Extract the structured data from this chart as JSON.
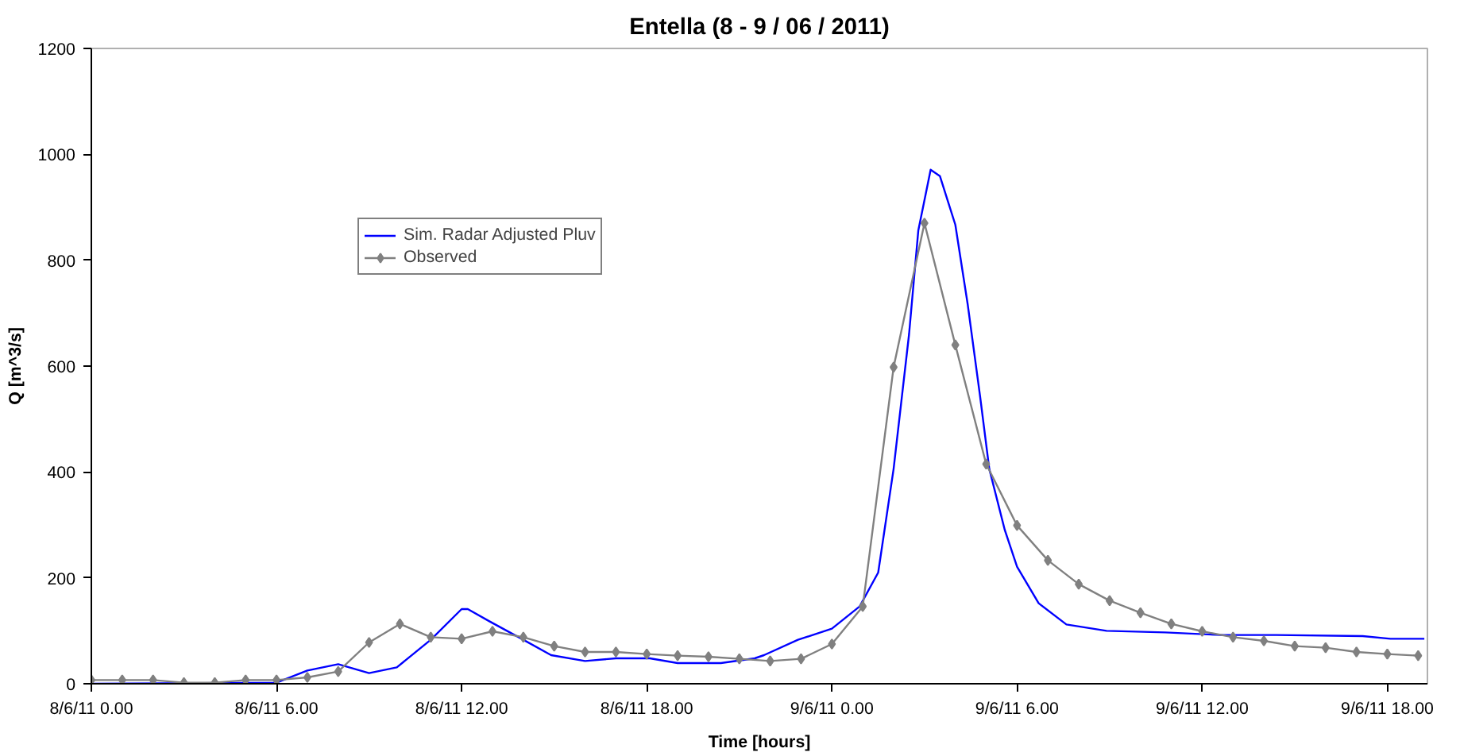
{
  "chart_data": {
    "type": "line",
    "title": "Entella (8 - 9 / 06 / 2011)",
    "xlabel": "Time [hours]",
    "ylabel": "Q [m^3/s]",
    "xlim": [
      "2011-06-08T00:00",
      "2011-06-09T19:18"
    ],
    "xticks": [
      {
        "value": "2011-06-08T00:00",
        "label": "8/6/11 0.00"
      },
      {
        "value": "2011-06-08T06:00",
        "label": "8/6/11 6.00"
      },
      {
        "value": "2011-06-08T12:00",
        "label": "8/6/11 12.00"
      },
      {
        "value": "2011-06-08T18:00",
        "label": "8/6/11 18.00"
      },
      {
        "value": "2011-06-09T00:00",
        "label": "9/6/11 0.00"
      },
      {
        "value": "2011-06-09T06:00",
        "label": "9/6/11 6.00"
      },
      {
        "value": "2011-06-09T12:00",
        "label": "9/6/11 12.00"
      },
      {
        "value": "2011-06-09T18:00",
        "label": "9/6/11 18.00"
      }
    ],
    "ylim": [
      0,
      1200
    ],
    "yticks": [
      0,
      200,
      400,
      600,
      800,
      1000,
      1200
    ],
    "grid": false,
    "legend": "top left",
    "series": [
      {
        "name": "Sim. Radar Adjusted Pluv",
        "color": "#0000ff",
        "marker": "none",
        "x": [
          "2011-06-08T00:00",
          "2011-06-08T06:00",
          "2011-06-08T07:00",
          "2011-06-08T08:00",
          "2011-06-08T09:00",
          "2011-06-08T09:54",
          "2011-06-08T11:00",
          "2011-06-08T12:00",
          "2011-06-08T12:12",
          "2011-06-08T12:54",
          "2011-06-08T14:00",
          "2011-06-08T14:54",
          "2011-06-08T16:00",
          "2011-06-08T17:00",
          "2011-06-08T18:06",
          "2011-06-08T19:00",
          "2011-06-08T20:24",
          "2011-06-08T21:30",
          "2011-06-08T21:48",
          "2011-06-08T22:54",
          "2011-06-09T00:00",
          "2011-06-09T00:54",
          "2011-06-09T01:30",
          "2011-06-09T02:00",
          "2011-06-09T02:30",
          "2011-06-09T02:48",
          "2011-06-09T03:12",
          "2011-06-09T03:30",
          "2011-06-09T04:00",
          "2011-06-09T04:24",
          "2011-06-09T04:48",
          "2011-06-09T05:06",
          "2011-06-09T05:36",
          "2011-06-09T06:00",
          "2011-06-09T06:42",
          "2011-06-09T07:36",
          "2011-06-09T08:54",
          "2011-06-09T10:48",
          "2011-06-09T12:36",
          "2011-06-09T14:24",
          "2011-06-09T17:12",
          "2011-06-09T18:06",
          "2011-06-09T19:12"
        ],
        "values": [
          0,
          2,
          25,
          37,
          20,
          31,
          83,
          141,
          141,
          118,
          83,
          54,
          43,
          48,
          48,
          39,
          39,
          48,
          54,
          83,
          104,
          146,
          210,
          406,
          660,
          856,
          971,
          959,
          867,
          717,
          544,
          406,
          291,
          221,
          152,
          112,
          100,
          97,
          92,
          92,
          90,
          85,
          85
        ]
      },
      {
        "name": "Observed",
        "color": "#808080",
        "marker": "diamond",
        "x": [
          "2011-06-08T00:00",
          "2011-06-08T01:00",
          "2011-06-08T02:00",
          "2011-06-08T03:00",
          "2011-06-08T04:00",
          "2011-06-08T05:00",
          "2011-06-08T06:00",
          "2011-06-08T07:00",
          "2011-06-08T08:00",
          "2011-06-08T09:00",
          "2011-06-08T10:00",
          "2011-06-08T11:00",
          "2011-06-08T12:00",
          "2011-06-08T13:00",
          "2011-06-08T14:00",
          "2011-06-08T15:00",
          "2011-06-08T16:00",
          "2011-06-08T17:00",
          "2011-06-08T18:00",
          "2011-06-08T19:00",
          "2011-06-08T20:00",
          "2011-06-08T21:00",
          "2011-06-08T22:00",
          "2011-06-08T23:00",
          "2011-06-09T00:00",
          "2011-06-09T01:00",
          "2011-06-09T02:00",
          "2011-06-09T03:00",
          "2011-06-09T04:00",
          "2011-06-09T05:00",
          "2011-06-09T06:00",
          "2011-06-09T07:00",
          "2011-06-09T08:00",
          "2011-06-09T09:00",
          "2011-06-09T10:00",
          "2011-06-09T11:00",
          "2011-06-09T12:00",
          "2011-06-09T13:00",
          "2011-06-09T14:00",
          "2011-06-09T15:00",
          "2011-06-09T16:00",
          "2011-06-09T17:00",
          "2011-06-09T18:00",
          "2011-06-09T19:00"
        ],
        "values": [
          7,
          7,
          7,
          2,
          2,
          7,
          7,
          12,
          23,
          78,
          113,
          88,
          85,
          99,
          88,
          71,
          60,
          60,
          56,
          53,
          51,
          47,
          43,
          47,
          75,
          146,
          598,
          870,
          640,
          415,
          299,
          233,
          188,
          157,
          134,
          113,
          99,
          88,
          81,
          71,
          68,
          60,
          56,
          53
        ]
      }
    ]
  }
}
